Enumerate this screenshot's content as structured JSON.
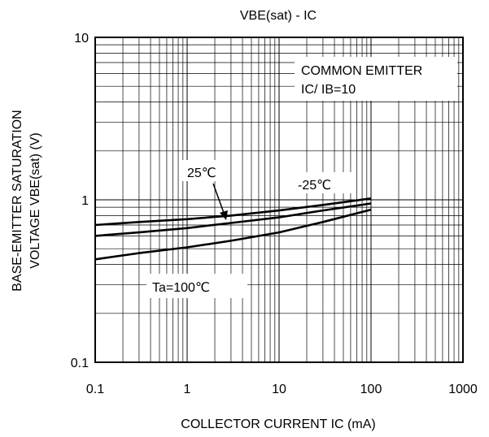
{
  "chart_data": {
    "type": "line",
    "title": "VBE(sat) - IC",
    "xlabel": "COLLECTOR CURRENT IC (mA)",
    "ylabel_line1": "BASE-EMITTER SATURATION",
    "ylabel_line2": "VOLTAGE  VBE(sat)  (V)",
    "xscale": "log",
    "yscale": "log",
    "xlim": [
      0.1,
      1000
    ],
    "ylim": [
      0.1,
      10
    ],
    "grid": true,
    "x_ticks": [
      0.1,
      1,
      10,
      100,
      1000
    ],
    "x_tick_labels": [
      "0.1",
      "1",
      "10",
      "100",
      "1000"
    ],
    "y_ticks": [
      0.1,
      1,
      10
    ],
    "y_tick_labels": [
      "0.1",
      "1",
      "10"
    ],
    "annotation_box_line1": "COMMON EMITTER",
    "annotation_box_line2": "IC/ IB=10",
    "series": [
      {
        "name": "-25℃",
        "x": [
          0.1,
          0.3,
          1,
          3,
          10,
          30,
          100
        ],
        "y": [
          0.7,
          0.73,
          0.76,
          0.8,
          0.86,
          0.93,
          1.02
        ]
      },
      {
        "name": "25℃",
        "x": [
          0.1,
          0.3,
          1,
          3,
          10,
          30,
          100
        ],
        "y": [
          0.6,
          0.63,
          0.67,
          0.72,
          0.78,
          0.86,
          0.95
        ]
      },
      {
        "name": "Ta=100℃",
        "x": [
          0.1,
          0.3,
          1,
          3,
          10,
          30,
          100
        ],
        "y": [
          0.43,
          0.47,
          0.51,
          0.56,
          0.63,
          0.73,
          0.87
        ]
      }
    ]
  }
}
